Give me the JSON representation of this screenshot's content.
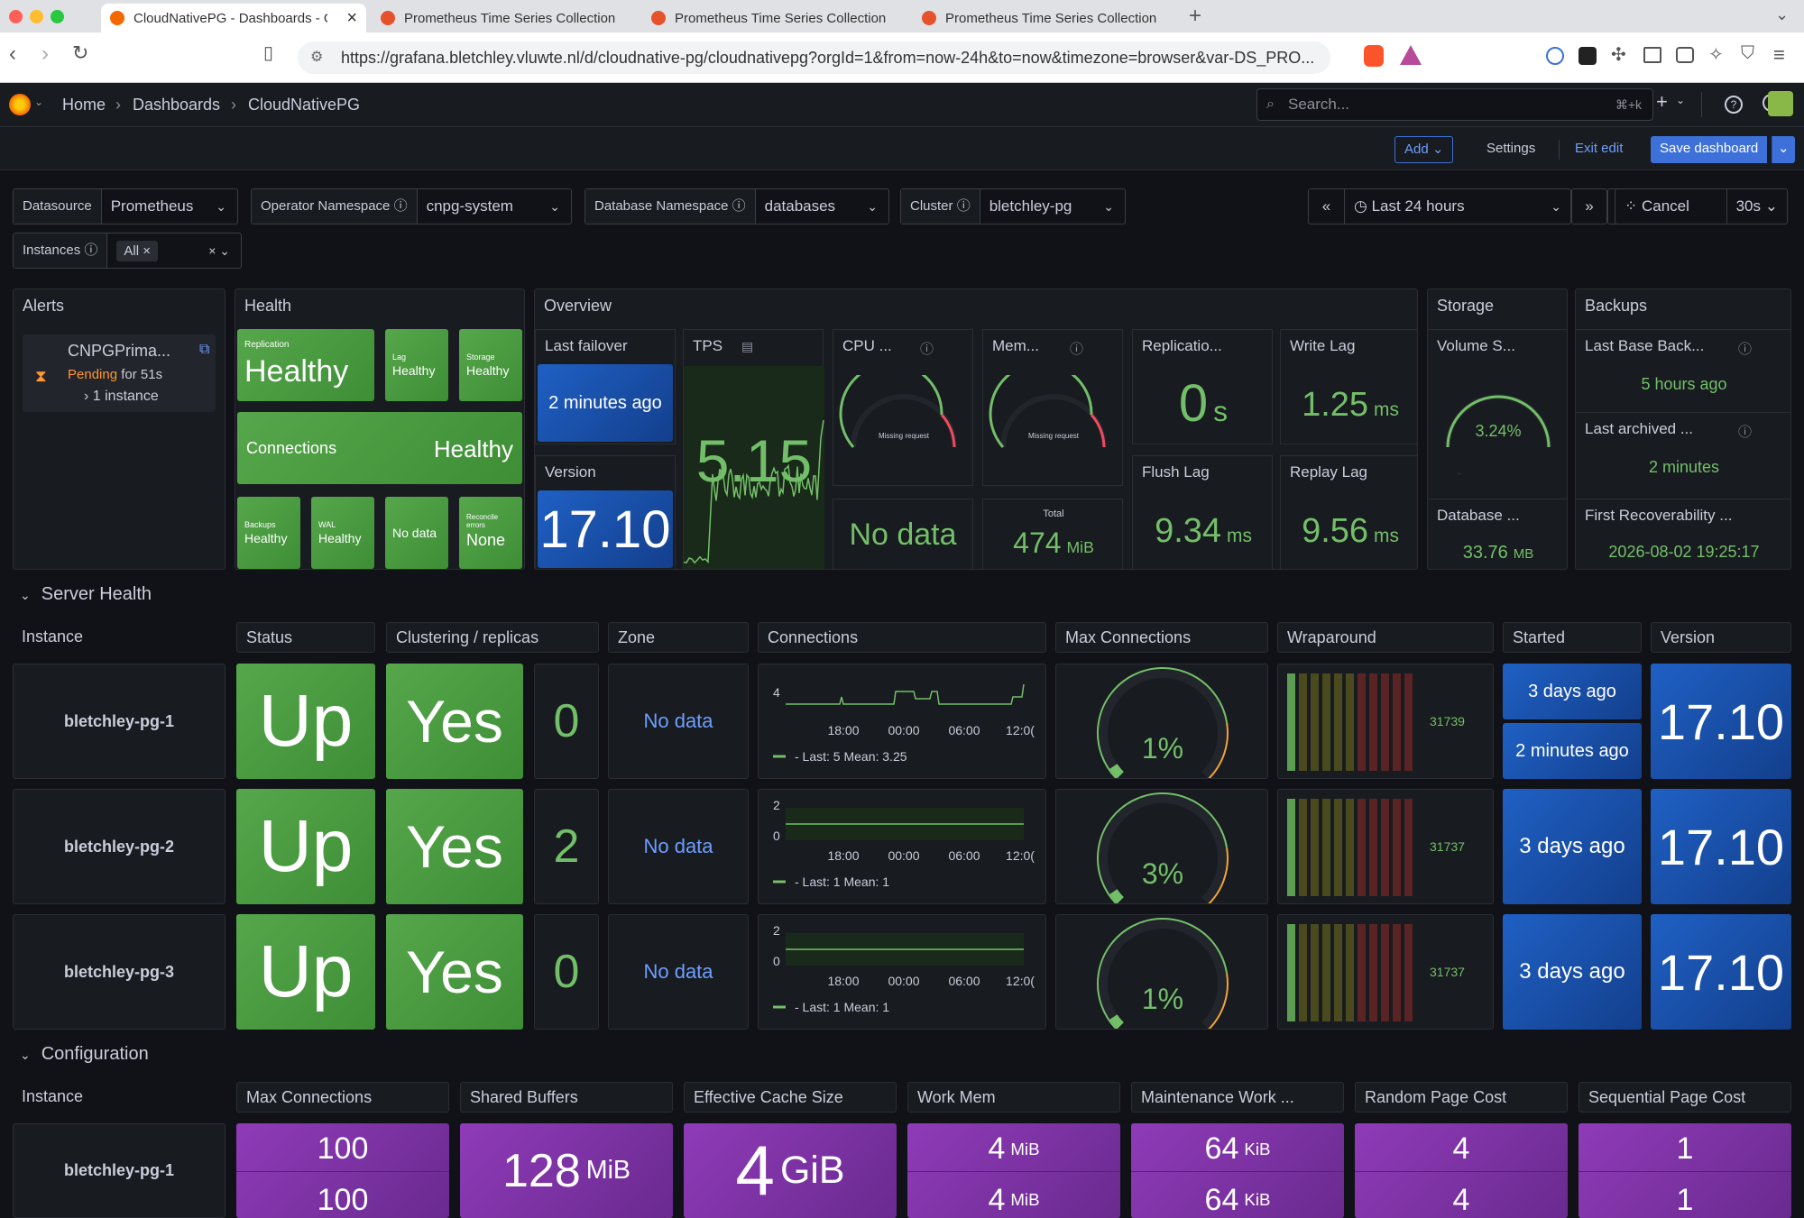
{
  "browser": {
    "tabs": [
      {
        "title": "CloudNativePG - Dashboards - Grafana",
        "active": true
      },
      {
        "title": "Prometheus Time Series Collection",
        "active": false
      },
      {
        "title": "Prometheus Time Series Collection",
        "active": false
      },
      {
        "title": "Prometheus Time Series Collection",
        "active": false
      }
    ],
    "url": "https://grafana.bletchley.vluwte.nl/d/cloudnative-pg/cloudnativepg?orgId=1&from=now-24h&to=now&timezone=browser&var-DS_PRO..."
  },
  "grafana": {
    "breadcrumb": [
      "Home",
      "Dashboards",
      "CloudNativePG"
    ],
    "search_placeholder": "Search...",
    "search_shortcut": "⌘+k",
    "toolbar": {
      "add": "Add",
      "settings": "Settings",
      "exit_edit": "Exit edit",
      "save": "Save dashboard"
    },
    "time": {
      "range": "Last 24 hours",
      "cancel": "Cancel",
      "refresh": "30s"
    }
  },
  "variables": [
    {
      "label": "Datasource",
      "value": "Prometheus"
    },
    {
      "label": "Operator Namespace",
      "value": "cnpg-system"
    },
    {
      "label": "Database Namespace",
      "value": "databases"
    },
    {
      "label": "Cluster",
      "value": "bletchley-pg"
    },
    {
      "label": "Instances",
      "value": "All"
    }
  ],
  "row_titles": {
    "alerts": "Alerts",
    "health": "Health",
    "overview": "Overview",
    "storage": "Storage",
    "backups": "Backups"
  },
  "alerts": {
    "name": "CNPGPrima...",
    "state": "Pending",
    "duration": "for 51s",
    "instances": "1 instance"
  },
  "health": {
    "replication": {
      "label": "Replication",
      "value": "Healthy"
    },
    "lag": {
      "label": "Lag",
      "value": "Healthy"
    },
    "storage": {
      "label": "Storage",
      "value": "Healthy"
    },
    "connections": {
      "label": "Connections",
      "value": "Healthy"
    },
    "backups": {
      "label": "Backups",
      "value": "Healthy"
    },
    "wal": {
      "label": "WAL",
      "value": "Healthy"
    },
    "nodata": {
      "value": "No data"
    },
    "reconcile": {
      "label": "Reconcile errors",
      "value": "None"
    }
  },
  "overview": {
    "last_failover": {
      "title": "Last failover",
      "value": "2 minutes ago"
    },
    "version": {
      "title": "Version",
      "value": "17.10"
    },
    "tps": {
      "title": "TPS",
      "value": "5.15"
    },
    "cpu": {
      "title": "CPU ...",
      "note": "Missing request",
      "nodata": "No data"
    },
    "mem": {
      "title": "Mem...",
      "note": "Missing request",
      "total_label": "Total",
      "total": "474",
      "total_unit": "MiB"
    },
    "replication": {
      "title": "Replicatio...",
      "value": "0",
      "unit": "s"
    },
    "write_lag": {
      "title": "Write Lag",
      "value": "1.25",
      "unit": "ms"
    },
    "flush_lag": {
      "title": "Flush Lag",
      "value": "9.34",
      "unit": "ms"
    },
    "replay_lag": {
      "title": "Replay Lag",
      "value": "9.56",
      "unit": "ms"
    }
  },
  "storage": {
    "volume": {
      "title": "Volume S...",
      "value": "3.24%",
      "fraction": 0.0324
    },
    "database": {
      "title": "Database ...",
      "value": "33.76",
      "unit": "MB"
    }
  },
  "backups": {
    "last_base": {
      "title": "Last Base Back...",
      "value": "5 hours ago"
    },
    "last_archived": {
      "title": "Last archived ...",
      "value": "2 minutes"
    },
    "first_recoverability": {
      "title": "First Recoverability ...",
      "value": "2026-08-02 19:25:17"
    }
  },
  "server_health": {
    "title": "Server Health",
    "columns": [
      "Instance",
      "Status",
      "Clustering / replicas",
      "Zone",
      "Connections",
      "Max Connections",
      "Wraparound",
      "Started",
      "Version"
    ],
    "xticks": [
      "18:00",
      "00:00",
      "06:00",
      "12:0("
    ],
    "rows": [
      {
        "instance": "bletchley-pg-1",
        "status": "Up",
        "clustering": "Yes",
        "replicas": "0",
        "zone": "No data",
        "conn_ymax": "4",
        "conn_ymin": "",
        "conn_last": "Last: 5",
        "conn_mean": "Mean: 3.25",
        "maxconn_pct": "1%",
        "maxconn_frac": 0.01,
        "wraparound": "31739",
        "started": "3 days ago",
        "started2": "2 minutes ago",
        "version": "17.10"
      },
      {
        "instance": "bletchley-pg-2",
        "status": "Up",
        "clustering": "Yes",
        "replicas": "2",
        "zone": "No data",
        "conn_ymax": "2",
        "conn_ymin": "0",
        "conn_last": "Last: 1",
        "conn_mean": "Mean: 1",
        "maxconn_pct": "3%",
        "maxconn_frac": 0.03,
        "wraparound": "31737",
        "started": "3 days ago",
        "started2": "",
        "version": "17.10"
      },
      {
        "instance": "bletchley-pg-3",
        "status": "Up",
        "clustering": "Yes",
        "replicas": "0",
        "zone": "No data",
        "conn_ymax": "2",
        "conn_ymin": "0",
        "conn_last": "Last: 1",
        "conn_mean": "Mean: 1",
        "maxconn_pct": "1%",
        "maxconn_frac": 0.01,
        "wraparound": "31737",
        "started": "3 days ago",
        "started2": "",
        "version": "17.10"
      }
    ]
  },
  "configuration": {
    "title": "Configuration",
    "columns": [
      "Instance",
      "Max Connections",
      "Shared Buffers",
      "Effective Cache Size",
      "Work Mem",
      "Maintenance Work ...",
      "Random Page Cost",
      "Sequential Page Cost"
    ],
    "instance": "bletchley-pg-1",
    "max_connections": "100",
    "shared_buffers": "128",
    "shared_buffers_unit": "MiB",
    "effective_cache": "4",
    "effective_cache_unit": "GiB",
    "work_mem": "4",
    "work_mem_unit": "MiB",
    "maintenance": "64",
    "maintenance_unit": "KiB",
    "random_page_cost": "4",
    "seq_page_cost": "1"
  },
  "colors": {
    "green": "#73bf69",
    "blue": "#1f60c4",
    "purple": "#8f3bb8",
    "accent": "#3d71d9"
  }
}
